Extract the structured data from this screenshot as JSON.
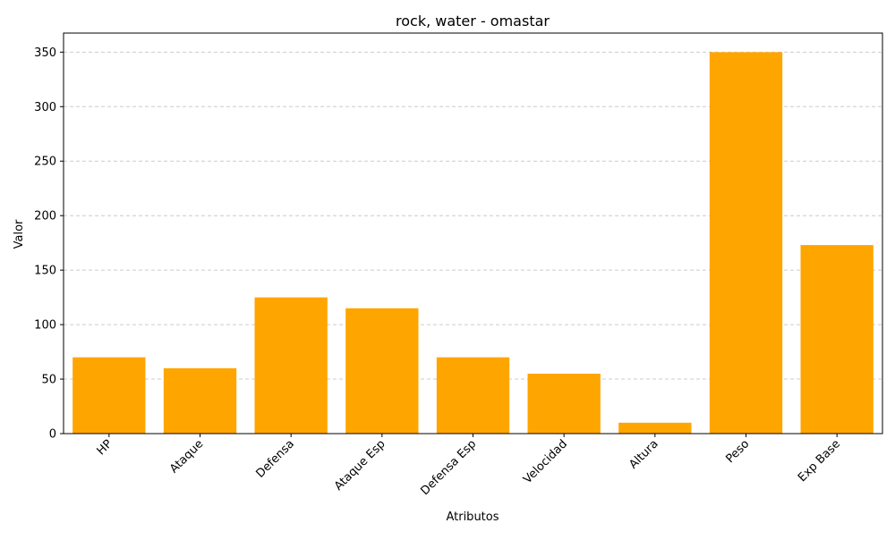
{
  "chart_data": {
    "type": "bar",
    "title": "rock, water - omastar",
    "xlabel": "Atributos",
    "ylabel": "Valor",
    "categories": [
      "HP",
      "Ataque",
      "Defensa",
      "Ataque Esp",
      "Defensa Esp",
      "Velocidad",
      "Altura",
      "Peso",
      "Exp Base"
    ],
    "values": [
      70,
      60,
      125,
      115,
      70,
      55,
      10,
      350,
      173
    ],
    "ylim": [
      0,
      367.5
    ],
    "yticks": [
      0,
      50,
      100,
      150,
      200,
      250,
      300,
      350
    ],
    "grid": "y-dashed",
    "bar_color": "#FFA500",
    "x_tick_rotation": 45
  }
}
